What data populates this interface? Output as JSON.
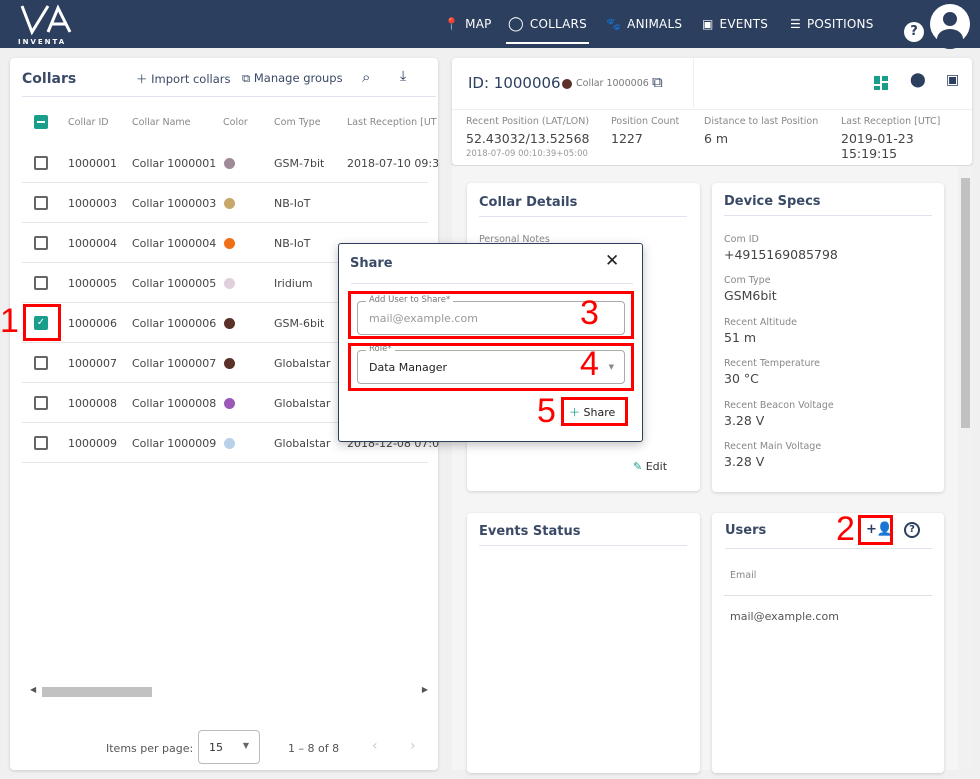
{
  "brand": {
    "logo_text": "INVENTA"
  },
  "nav": [
    {
      "label": "MAP",
      "icon": "map-pin-icon"
    },
    {
      "label": "COLLARS",
      "icon": "collar-icon",
      "active": true
    },
    {
      "label": "ANIMALS",
      "icon": "paw-icon"
    },
    {
      "label": "EVENTS",
      "icon": "calendar-icon"
    },
    {
      "label": "POSITIONS",
      "icon": "list-icon"
    }
  ],
  "collars": {
    "title": "Collars",
    "import_label": "Import collars",
    "groups_label": "Manage groups",
    "columns": [
      "Collar ID",
      "Collar Name",
      "Color",
      "Com Type",
      "Last Reception [UT"
    ],
    "rows": [
      {
        "id": "1000001",
        "name": "Collar 1000001",
        "color": "#a08a98",
        "com": "GSM-7bit",
        "last": "2018-07-10 09:3",
        "checked": false
      },
      {
        "id": "1000003",
        "name": "Collar 1000003",
        "color": "#c8a868",
        "com": "NB-IoT",
        "last": "",
        "checked": false
      },
      {
        "id": "1000004",
        "name": "Collar 1000004",
        "color": "#f07018",
        "com": "NB-IoT",
        "last": "",
        "checked": false
      },
      {
        "id": "1000005",
        "name": "Collar 1000005",
        "color": "#e0d0dc",
        "com": "Iridium",
        "last": "",
        "checked": false
      },
      {
        "id": "1000006",
        "name": "Collar 1000006",
        "color": "#5a3028",
        "com": "GSM-6bit",
        "last": "",
        "checked": true
      },
      {
        "id": "1000007",
        "name": "Collar 1000007",
        "color": "#5a3028",
        "com": "Globalstar",
        "last": "",
        "checked": false
      },
      {
        "id": "1000008",
        "name": "Collar 1000008",
        "color": "#9a58b8",
        "com": "Globalstar",
        "last": "",
        "checked": false
      },
      {
        "id": "1000009",
        "name": "Collar 1000009",
        "color": "#b8d0e8",
        "com": "Globalstar",
        "last": "2018-12-08 07:0",
        "checked": false
      }
    ],
    "items_per_page_label": "Items per page:",
    "items_per_page": "15",
    "range": "1 – 8 of 8"
  },
  "detail": {
    "id": "ID: 1000006",
    "name": "Collar 1000006",
    "color": "#5a3028",
    "stats": [
      {
        "label": "Recent Position (LAT/LON)",
        "value": "52.43032/13.52568",
        "sub": "2018-07-09 00:10:39+05:00"
      },
      {
        "label": "Position Count",
        "value": "1227"
      },
      {
        "label": "Distance to last Position",
        "value": "6 m"
      },
      {
        "label": "Last Reception [UTC]",
        "value": "2019-01-23 15:19:15"
      }
    ],
    "collar_details_title": "Collar Details",
    "personal_notes": "Personal Notes",
    "edit_label": "Edit",
    "device_specs_title": "Device Specs",
    "specs": [
      {
        "label": "Com ID",
        "value": "+4915169085798"
      },
      {
        "label": "Com Type",
        "value": "GSM6bit"
      },
      {
        "label": "Recent Altitude",
        "value": "51 m"
      },
      {
        "label": "Recent Temperature",
        "value": "30 °C"
      },
      {
        "label": "Recent Beacon Voltage",
        "value": "3.28 V"
      },
      {
        "label": "Recent Main Voltage",
        "value": "3.28 V"
      }
    ],
    "events_title": "Events Status",
    "users_title": "Users",
    "users_col": "Email",
    "users": [
      "mail@example.com"
    ]
  },
  "dialog": {
    "title": "Share",
    "user_label": "Add User to Share*",
    "user_placeholder": "mail@example.com",
    "role_label": "Role*",
    "role_value": "Data Manager",
    "share_label": "Share"
  },
  "annotations": [
    "1",
    "2",
    "3",
    "4",
    "5"
  ],
  "colors": {
    "header": "#2c3f5f",
    "accent": "#1a9e8c",
    "annotation": "#ff0000"
  }
}
